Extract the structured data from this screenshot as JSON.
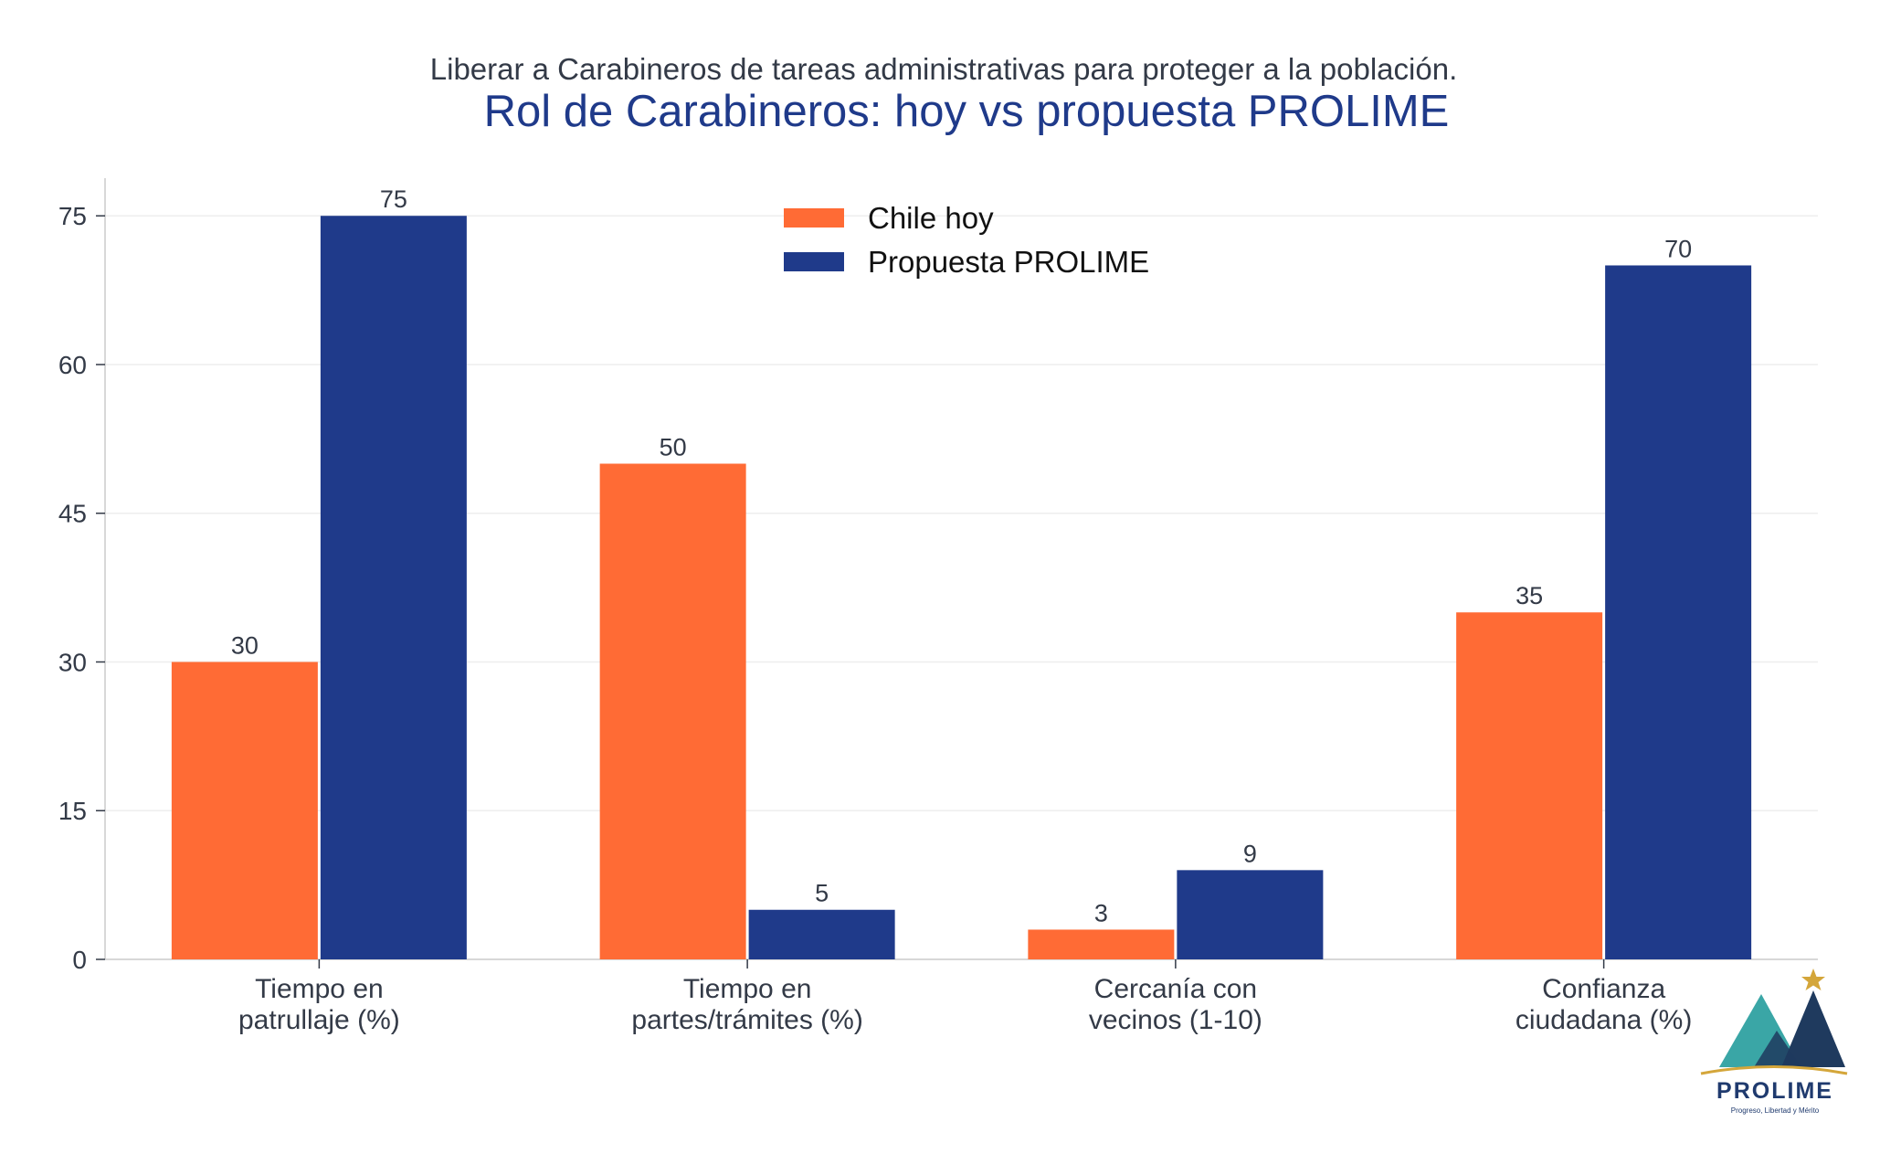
{
  "colors": {
    "series_1": "#ff6b35",
    "series_2": "#1f3a8a",
    "grid": "#eeeeee",
    "axis": "#cccccc",
    "logo_teal": "#3aa6a6",
    "logo_navy": "#1f3a5e",
    "logo_star": "#d4a63a"
  },
  "logo": {
    "name": "PROLIME",
    "tagline": "Progreso, Libertad y Mérito"
  },
  "chart_data": {
    "type": "bar",
    "subtitle": "Liberar a Carabineros de tareas administrativas para proteger a la población.",
    "title": "Rol de Carabineros: hoy vs propuesta PROLIME",
    "categories": [
      [
        "Tiempo en",
        "patrullaje (%)"
      ],
      [
        "Tiempo en",
        "partes/trámites (%)"
      ],
      [
        "Cercanía con",
        "vecinos (1-10)"
      ],
      [
        "Confianza",
        "ciudadana (%)"
      ]
    ],
    "series": [
      {
        "name": "Chile hoy",
        "values": [
          30,
          50,
          3,
          35
        ]
      },
      {
        "name": "Propuesta PROLIME",
        "values": [
          75,
          5,
          9,
          70
        ]
      }
    ],
    "yticks": [
      "0",
      "15",
      "30",
      "45",
      "60",
      "75"
    ],
    "ylim": [
      0,
      78.8
    ],
    "grid": true,
    "legend_position": "top-center"
  }
}
